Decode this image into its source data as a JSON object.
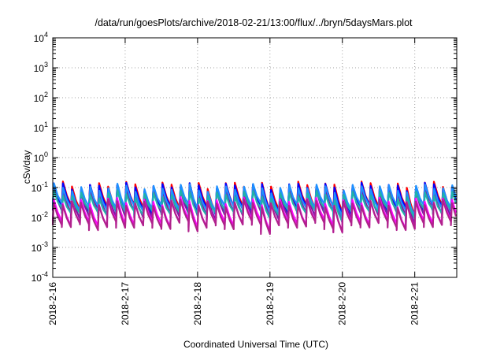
{
  "chart_data": {
    "type": "line",
    "title": "/data/run/goesPlots/archive/2018-02-21/13:00/flux/../bryn/5daysMars.plot",
    "xlabel": "Coordinated Universal Time (UTC)",
    "ylabel": "cSv/day",
    "yscale": "log",
    "ylim": [
      0.0001,
      10000
    ],
    "xlim_days": [
      0,
      5.58
    ],
    "x_ticks": [
      {
        "label": "2018-2-16",
        "day": 0
      },
      {
        "label": "2018-2-17",
        "day": 1
      },
      {
        "label": "2018-2-18",
        "day": 2
      },
      {
        "label": "2018-2-19",
        "day": 3
      },
      {
        "label": "2018-2-20",
        "day": 4
      },
      {
        "label": "2018-2-21",
        "day": 5
      }
    ],
    "y_ticks": [
      {
        "base": "10",
        "exp": "4",
        "value": 10000
      },
      {
        "base": "10",
        "exp": "3",
        "value": 1000
      },
      {
        "base": "10",
        "exp": "2",
        "value": 100
      },
      {
        "base": "10",
        "exp": "1",
        "value": 10
      },
      {
        "base": "10",
        "exp": "0",
        "value": 1
      },
      {
        "base": "10",
        "exp": "-1",
        "value": 0.1
      },
      {
        "base": "10",
        "exp": "-2",
        "value": 0.01
      },
      {
        "base": "10",
        "exp": "-3",
        "value": 0.001
      },
      {
        "base": "10",
        "exp": "-4",
        "value": 0.0001
      }
    ],
    "grid": true,
    "legend": "none",
    "cycle_days": 0.125,
    "series": [
      {
        "color": "#ff0000",
        "peak": 0.12,
        "trough": 0.02,
        "rise_fraction": 0.12
      },
      {
        "color": "#0000ff",
        "peak": 0.11,
        "trough": 0.019,
        "rise_fraction": 0.12
      },
      {
        "color": "#7a1fa2",
        "peak": 0.075,
        "trough": 0.0125,
        "rise_fraction": 0.12
      },
      {
        "color": "#1e90ff",
        "peak": 0.1,
        "trough": 0.022,
        "rise_fraction": 0.14
      },
      {
        "color": "#20b2aa",
        "peak": 0.06,
        "trough": 0.016,
        "rise_fraction": 0.14
      },
      {
        "color": "#ff00ff",
        "peak": 0.035,
        "trough": 0.0065,
        "rise_fraction": 0.1
      },
      {
        "color": "#b0228c",
        "peak": 0.03,
        "trough": 0.0055,
        "rise_fraction": 0.1
      }
    ]
  }
}
